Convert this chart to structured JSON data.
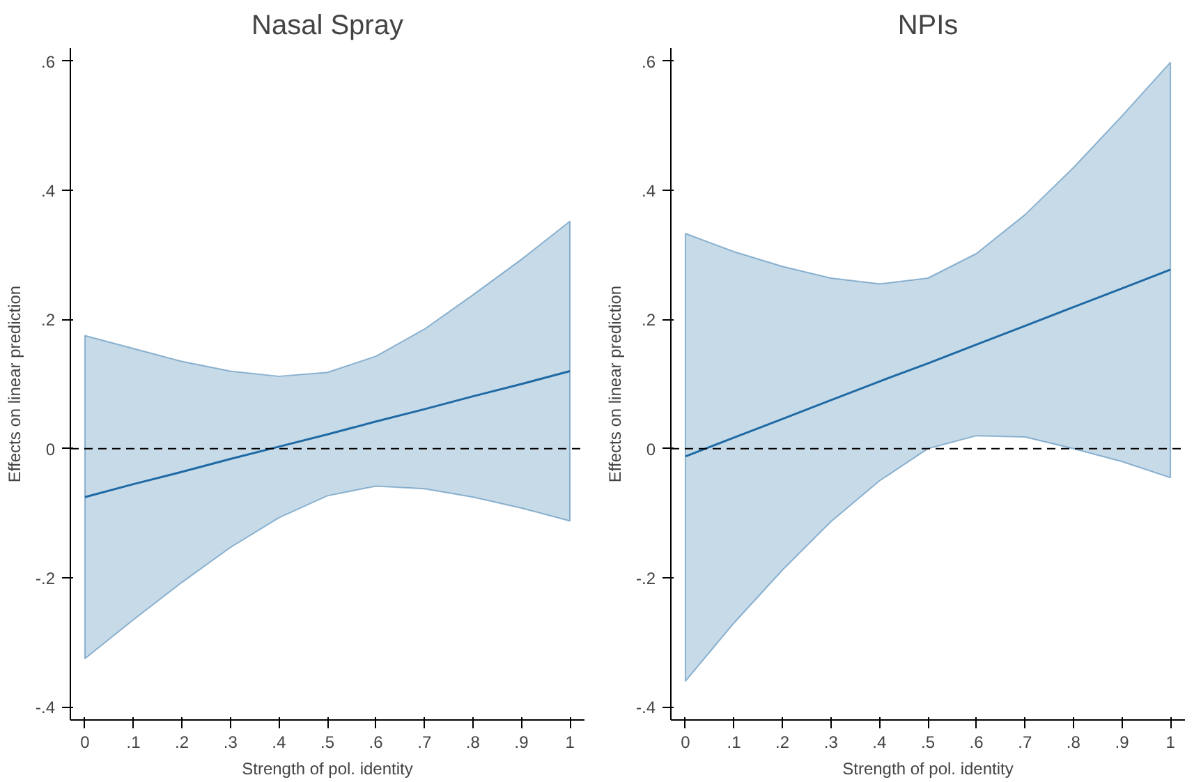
{
  "chart_data": [
    {
      "type": "line",
      "title": "Nasal Spray",
      "xlabel": "Strength of pol. identity",
      "ylabel": "Effects on linear prediction",
      "x": [
        0,
        0.1,
        0.2,
        0.3,
        0.4,
        0.5,
        0.6,
        0.7,
        0.8,
        0.9,
        1
      ],
      "series": [
        {
          "color": "#1f6aa5",
          "values": [
            -0.075,
            -0.055,
            -0.036,
            -0.016,
            0.003,
            0.022,
            0.042,
            0.061,
            0.081,
            0.1,
            0.12
          ],
          "lower": [
            -0.325,
            -0.265,
            -0.207,
            -0.153,
            -0.107,
            -0.073,
            -0.058,
            -0.062,
            -0.075,
            -0.092,
            -0.112
          ],
          "upper": [
            0.175,
            0.155,
            0.135,
            0.12,
            0.112,
            0.118,
            0.143,
            0.185,
            0.238,
            0.293,
            0.352
          ]
        }
      ],
      "xlim": [
        -0.03,
        1.03
      ],
      "ylim": [
        -0.42,
        0.62
      ],
      "xticks": [
        0,
        {
          "value": 0.1,
          "label": ".1"
        },
        {
          "value": 0.2,
          "label": ".2"
        },
        {
          "value": 0.3,
          "label": ".3"
        },
        {
          "value": 0.4,
          "label": ".4"
        },
        {
          "value": 0.5,
          "label": ".5"
        },
        {
          "value": 0.6,
          "label": ".6"
        },
        {
          "value": 0.7,
          "label": ".7"
        },
        {
          "value": 0.8,
          "label": ".8"
        },
        {
          "value": 0.9,
          "label": ".9"
        },
        1
      ],
      "yticks": [
        {
          "value": -0.4,
          "label": "-.4"
        },
        {
          "value": -0.2,
          "label": "-.2"
        },
        0,
        {
          "value": 0.2,
          "label": ".2"
        },
        {
          "value": 0.4,
          "label": ".4"
        },
        {
          "value": 0.6,
          "label": ".6"
        }
      ],
      "ref_lines": [
        {
          "axis": "y",
          "value": 0,
          "color": "#000000",
          "line_style": "dashed"
        }
      ],
      "grid": false,
      "marker": "none",
      "line_style": "solid"
    },
    {
      "type": "line",
      "title": "NPIs",
      "xlabel": "Strength of pol. identity",
      "ylabel": "Effects on linear prediction",
      "x": [
        0,
        0.1,
        0.2,
        0.3,
        0.4,
        0.5,
        0.6,
        0.7,
        0.8,
        0.9,
        1
      ],
      "series": [
        {
          "color": "#1f6aa5",
          "values": [
            -0.012,
            0.017,
            0.046,
            0.075,
            0.104,
            0.132,
            0.161,
            0.19,
            0.219,
            0.248,
            0.277
          ],
          "lower": [
            -0.36,
            -0.27,
            -0.188,
            -0.113,
            -0.05,
            0.0,
            0.02,
            0.018,
            0.0,
            -0.02,
            -0.045
          ],
          "upper": [
            0.333,
            0.305,
            0.282,
            0.264,
            0.255,
            0.264,
            0.302,
            0.362,
            0.435,
            0.515,
            0.598
          ]
        }
      ],
      "xlim": [
        -0.03,
        1.03
      ],
      "ylim": [
        -0.42,
        0.62
      ],
      "xticks": [
        0,
        {
          "value": 0.1,
          "label": ".1"
        },
        {
          "value": 0.2,
          "label": ".2"
        },
        {
          "value": 0.3,
          "label": ".3"
        },
        {
          "value": 0.4,
          "label": ".4"
        },
        {
          "value": 0.5,
          "label": ".5"
        },
        {
          "value": 0.6,
          "label": ".6"
        },
        {
          "value": 0.7,
          "label": ".7"
        },
        {
          "value": 0.8,
          "label": ".8"
        },
        {
          "value": 0.9,
          "label": ".9"
        },
        1
      ],
      "yticks": [
        {
          "value": -0.4,
          "label": "-.4"
        },
        {
          "value": -0.2,
          "label": "-.2"
        },
        0,
        {
          "value": 0.2,
          "label": ".2"
        },
        {
          "value": 0.4,
          "label": ".4"
        },
        {
          "value": 0.6,
          "label": ".6"
        }
      ],
      "ref_lines": [
        {
          "axis": "y",
          "value": 0,
          "color": "#000000",
          "line_style": "dashed"
        }
      ],
      "grid": false,
      "marker": "none",
      "line_style": "solid"
    }
  ]
}
